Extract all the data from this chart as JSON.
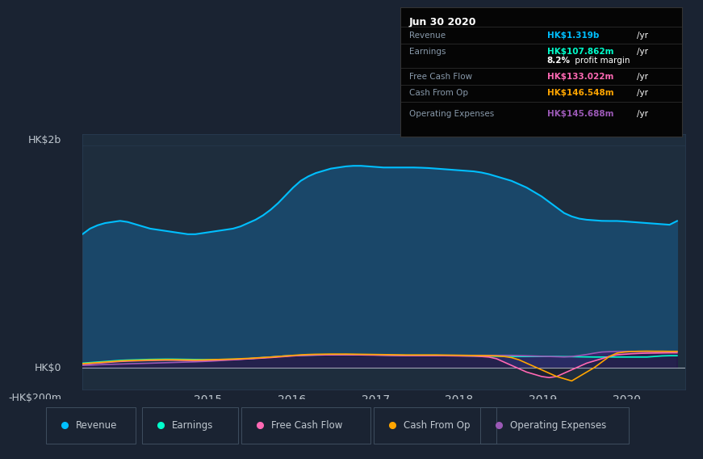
{
  "bg_color": "#1a2332",
  "plot_bg_color": "#1e2d3d",
  "grid_color": "#2a3f55",
  "text_color": "#c0c8d0",
  "ylabel_hk2b": "HK$2b",
  "ylabel_hk0": "HK$0",
  "ylabel_hkm200": "-HK$200m",
  "x_ticks": [
    2015,
    2016,
    2017,
    2018,
    2019,
    2020
  ],
  "revenue_color": "#00bfff",
  "earnings_color": "#00ffcc",
  "fcf_color": "#ff69b4",
  "cashfromop_color": "#ffa500",
  "opex_color": "#9b59b6",
  "revenue_fill_color": "#1a4a6e",
  "legend_labels": [
    "Revenue",
    "Earnings",
    "Free Cash Flow",
    "Cash From Op",
    "Operating Expenses"
  ],
  "legend_colors": [
    "#00bfff",
    "#00ffcc",
    "#ff69b4",
    "#ffa500",
    "#9b59b6"
  ],
  "tooltip_date": "Jun 30 2020",
  "tooltip_revenue": "HK$1.319b",
  "tooltip_earnings": "HK$107.862m",
  "tooltip_margin": "8.2%",
  "tooltip_fcf": "HK$133.022m",
  "tooltip_cashfromop": "HK$146.548m",
  "tooltip_opex": "HK$145.688m",
  "revenue_color_tooltip": "#00bfff",
  "earnings_color_tooltip": "#00ffcc",
  "fcf_color_tooltip": "#ff69b4",
  "cashfromop_color_tooltip": "#ffa500",
  "opex_color_tooltip": "#9b59b6",
  "ylim_min": -200,
  "ylim_max": 2100,
  "num_points": 80
}
